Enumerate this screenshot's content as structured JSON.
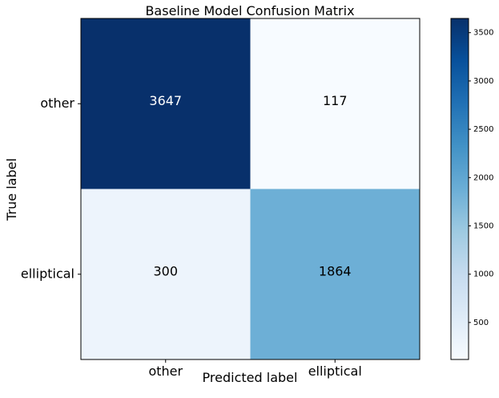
{
  "chart_data": {
    "type": "heatmap",
    "title": "Baseline Model Confusion Matrix",
    "xlabel": "Predicted label",
    "ylabel": "True label",
    "x_categories": [
      "other",
      "elliptical"
    ],
    "y_categories": [
      "other",
      "elliptical"
    ],
    "values": [
      [
        3647,
        117
      ],
      [
        300,
        1864
      ]
    ],
    "colormap": "Blues",
    "colormap_stops": [
      "#f7fbff",
      "#deebf7",
      "#c6dbef",
      "#9ecae1",
      "#6baed6",
      "#4292c6",
      "#2171b5",
      "#08519c",
      "#08306b"
    ],
    "color_range": [
      117,
      3647
    ],
    "text_threshold": 1882,
    "text_color_dark": "#000000",
    "text_color_light": "#ffffff",
    "colorbar": {
      "ticks": [
        500,
        1000,
        1500,
        2000,
        2500,
        3000,
        3500
      ],
      "tick_labels": [
        "500",
        "1000",
        "1500",
        "2000",
        "2500",
        "3000",
        "3500"
      ]
    },
    "grid": false
  }
}
